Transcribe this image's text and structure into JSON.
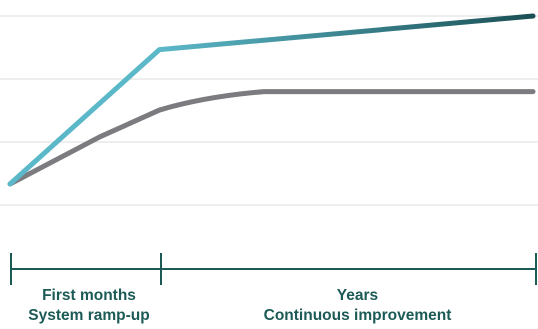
{
  "chart_data": {
    "type": "line",
    "x_unit": "relative time",
    "grid": true,
    "gridline_count": 4,
    "series": [
      {
        "color": "#5bb8c8",
        "color_end": "#1b4f55",
        "points": [
          [
            0,
            0
          ],
          [
            1,
            0.8
          ],
          [
            3.5,
            1.0
          ]
        ]
      },
      {
        "color": "#7b7b80",
        "points": [
          [
            0,
            0
          ],
          [
            0.6,
            0.28
          ],
          [
            1,
            0.44
          ],
          [
            1.3,
            0.52
          ],
          [
            1.7,
            0.55
          ],
          [
            3.5,
            0.55
          ]
        ]
      }
    ],
    "phases": [
      {
        "line1": "First months",
        "line2": "System ramp-up"
      },
      {
        "line1": "Years",
        "line2": "Continuous improvement"
      }
    ],
    "timeline_color": "#1c5a55"
  }
}
